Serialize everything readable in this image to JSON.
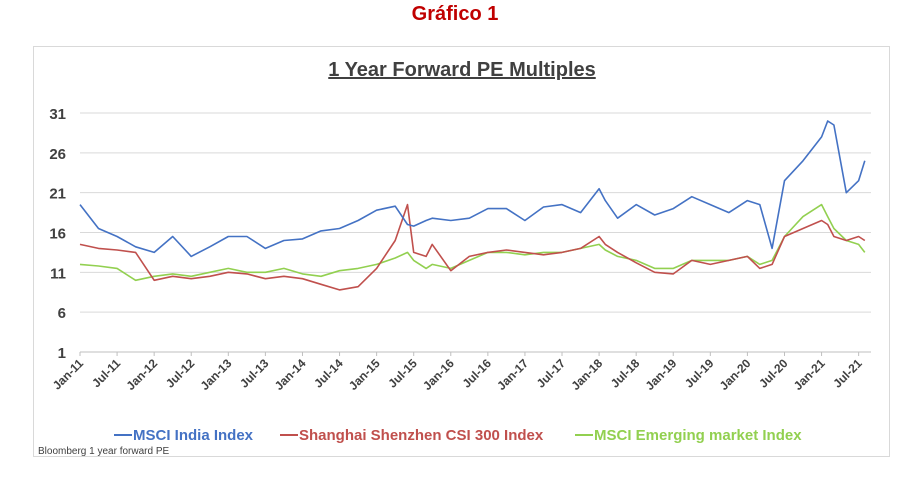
{
  "page_title": "Gráfico 1",
  "source_note": "Bloomberg 1 year forward  PE",
  "chart_data": {
    "type": "line",
    "title": "1 Year Forward PE Multiples",
    "xlabel": "",
    "ylabel": "",
    "ylim": [
      1,
      31
    ],
    "yticks": [
      1,
      6,
      11,
      16,
      21,
      26,
      31
    ],
    "x_tick_labels": [
      "Jan-11",
      "Jul-11",
      "Jan-12",
      "Jul-12",
      "Jan-13",
      "Jul-13",
      "Jan-14",
      "Jul-14",
      "Jan-15",
      "Jul-15",
      "Jan-16",
      "Jul-16",
      "Jan-17",
      "Jul-17",
      "Jan-18",
      "Jul-18",
      "Jan-19",
      "Jul-19",
      "Jan-20",
      "Jul-20",
      "Jan-21",
      "Jul-21"
    ],
    "grid": "horizontal",
    "legend_position": "bottom",
    "x": [
      "2011-01",
      "2011-04",
      "2011-07",
      "2011-10",
      "2012-01",
      "2012-04",
      "2012-07",
      "2012-10",
      "2013-01",
      "2013-04",
      "2013-07",
      "2013-10",
      "2014-01",
      "2014-04",
      "2014-07",
      "2014-10",
      "2015-01",
      "2015-04",
      "2015-06",
      "2015-07",
      "2015-09",
      "2015-10",
      "2016-01",
      "2016-04",
      "2016-07",
      "2016-10",
      "2017-01",
      "2017-04",
      "2017-07",
      "2017-10",
      "2018-01",
      "2018-02",
      "2018-04",
      "2018-07",
      "2018-10",
      "2019-01",
      "2019-04",
      "2019-07",
      "2019-10",
      "2020-01",
      "2020-03",
      "2020-05",
      "2020-07",
      "2020-10",
      "2021-01",
      "2021-02",
      "2021-03",
      "2021-05",
      "2021-07",
      "2021-08"
    ],
    "series": [
      {
        "name": "MSCI India Index",
        "color": "#4472c4",
        "values": [
          19.5,
          16.5,
          15.5,
          14.2,
          13.5,
          15.5,
          13.0,
          14.2,
          15.5,
          15.5,
          14.0,
          15.0,
          15.2,
          16.2,
          16.5,
          17.5,
          18.8,
          19.3,
          17.0,
          16.8,
          17.5,
          17.8,
          17.5,
          17.8,
          19.0,
          19.0,
          17.5,
          19.2,
          19.5,
          18.5,
          21.5,
          20.0,
          17.8,
          19.5,
          18.2,
          19.0,
          20.5,
          19.5,
          18.5,
          20.0,
          19.5,
          14.0,
          22.5,
          25.0,
          28.0,
          30.0,
          29.5,
          21.0,
          22.5,
          25.0
        ]
      },
      {
        "name": "Shanghai Shenzhen CSI 300 Index",
        "color": "#c0504d",
        "values": [
          14.5,
          14.0,
          13.8,
          13.5,
          10.0,
          10.5,
          10.2,
          10.5,
          11.0,
          10.8,
          10.2,
          10.5,
          10.2,
          9.5,
          8.8,
          9.2,
          11.5,
          15.0,
          19.5,
          13.5,
          13.0,
          14.5,
          11.2,
          13.0,
          13.5,
          13.8,
          13.5,
          13.2,
          13.5,
          14.0,
          15.5,
          14.5,
          13.5,
          12.2,
          11.0,
          10.8,
          12.5,
          12.0,
          12.5,
          13.0,
          11.5,
          12.0,
          15.5,
          16.5,
          17.5,
          17.0,
          15.5,
          15.0,
          15.5,
          15.0
        ]
      },
      {
        "name": "MSCI Emerging market Index",
        "color": "#92d050",
        "values": [
          12.0,
          11.8,
          11.5,
          10.0,
          10.5,
          10.8,
          10.5,
          11.0,
          11.5,
          11.0,
          11.0,
          11.5,
          10.8,
          10.5,
          11.2,
          11.5,
          12.0,
          12.8,
          13.5,
          12.5,
          11.5,
          12.0,
          11.5,
          12.5,
          13.5,
          13.5,
          13.2,
          13.5,
          13.5,
          14.0,
          14.5,
          13.8,
          13.0,
          12.5,
          11.5,
          11.5,
          12.5,
          12.5,
          12.5,
          13.0,
          12.0,
          12.5,
          15.5,
          18.0,
          19.5,
          18.0,
          16.5,
          15.0,
          14.5,
          13.5
        ]
      }
    ]
  }
}
